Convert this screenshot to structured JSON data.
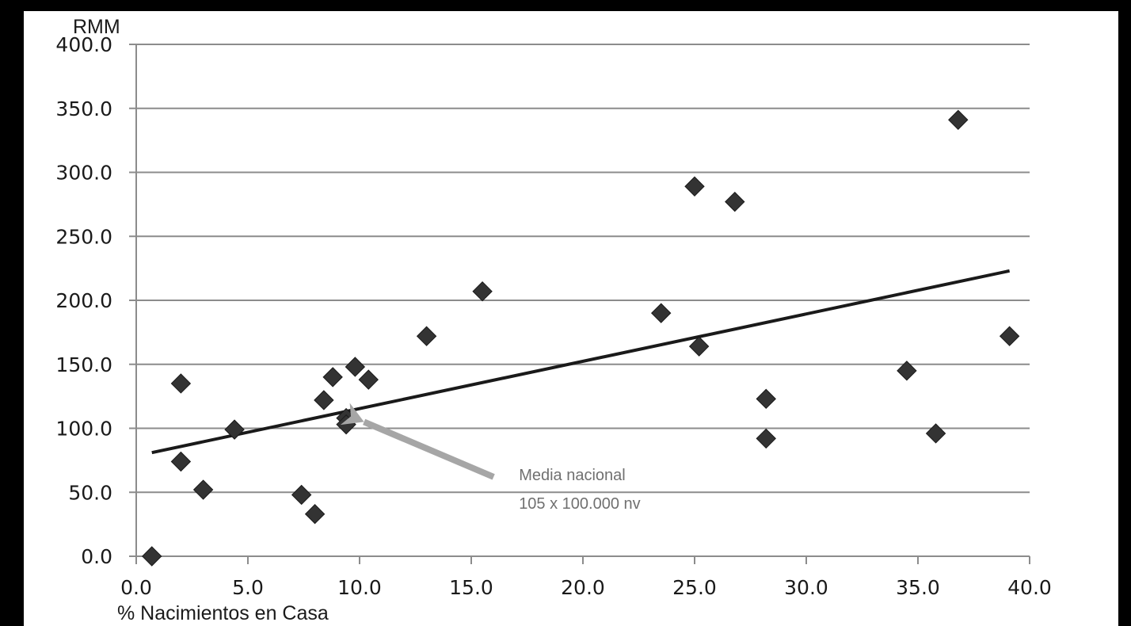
{
  "chart_data": {
    "type": "scatter",
    "title": "",
    "xlabel": "% Nacimientos en Casa",
    "ylabel": "RMM",
    "xlim": [
      0,
      40
    ],
    "ylim": [
      0,
      400
    ],
    "x_ticks": [
      "0.0",
      "5.0",
      "10.0",
      "15.0",
      "20.0",
      "25.0",
      "30.0",
      "35.0",
      "40.0"
    ],
    "y_ticks": [
      "0.0",
      "50.0",
      "100.0",
      "150.0",
      "200.0",
      "250.0",
      "300.0",
      "350.0",
      "400.0"
    ],
    "grid": "horizontal",
    "legend": "none",
    "colors": {
      "points": "#333333",
      "trend": "#1a1a1a",
      "grid": "#8c8c8c",
      "arrow": "#a6a6a6",
      "annotation": "#707070"
    },
    "points": [
      {
        "x": 0.7,
        "y": 0
      },
      {
        "x": 2.0,
        "y": 135
      },
      {
        "x": 2.0,
        "y": 74
      },
      {
        "x": 3.0,
        "y": 52
      },
      {
        "x": 4.4,
        "y": 99
      },
      {
        "x": 7.4,
        "y": 48
      },
      {
        "x": 8.0,
        "y": 33
      },
      {
        "x": 8.4,
        "y": 122
      },
      {
        "x": 8.8,
        "y": 140
      },
      {
        "x": 9.4,
        "y": 108
      },
      {
        "x": 9.4,
        "y": 103
      },
      {
        "x": 9.8,
        "y": 148
      },
      {
        "x": 10.4,
        "y": 138
      },
      {
        "x": 13.0,
        "y": 172
      },
      {
        "x": 15.5,
        "y": 207
      },
      {
        "x": 23.5,
        "y": 190
      },
      {
        "x": 25.0,
        "y": 289
      },
      {
        "x": 25.2,
        "y": 164
      },
      {
        "x": 26.8,
        "y": 277
      },
      {
        "x": 28.2,
        "y": 123
      },
      {
        "x": 28.2,
        "y": 92
      },
      {
        "x": 34.5,
        "y": 145
      },
      {
        "x": 35.8,
        "y": 96
      },
      {
        "x": 36.8,
        "y": 341
      },
      {
        "x": 39.1,
        "y": 172
      }
    ],
    "trendline": {
      "x": [
        0.7,
        39.1
      ],
      "y": [
        81,
        223
      ]
    },
    "annotation": {
      "lines": [
        "Media nacional",
        "105 x 100.000 nv"
      ],
      "arrow_from": {
        "x": 16.0,
        "y": 62
      },
      "arrow_to": {
        "x": 10.2,
        "y": 105
      }
    }
  }
}
